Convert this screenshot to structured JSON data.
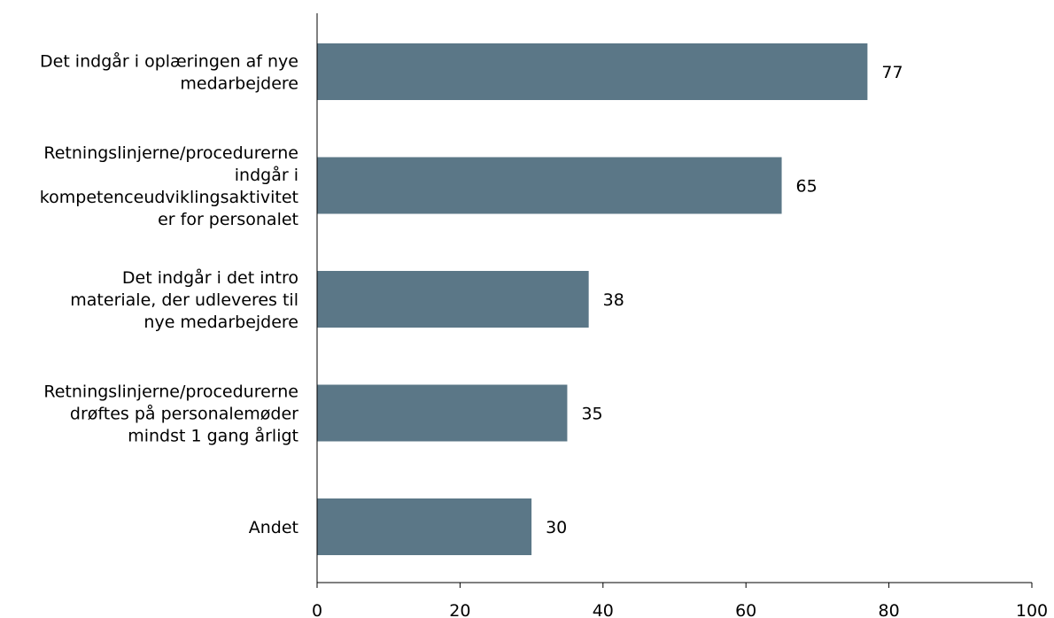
{
  "chart_data": {
    "type": "bar",
    "orientation": "horizontal",
    "title": "",
    "xlabel": "",
    "ylabel": "",
    "categories": [
      [
        "Det indgår i oplæringen af nye",
        "medarbejdere"
      ],
      [
        "Retningslinjerne/procedurerne",
        "indgår i",
        "kompetenceudviklingsaktivitet",
        "er for personalet"
      ],
      [
        "Det indgår i det intro",
        "materiale, der udleveres til",
        "nye medarbejdere"
      ],
      [
        "Retningslinjerne/procedurerne",
        "drøftes på personalemøder",
        "mindst 1 gang årligt"
      ],
      [
        "Andet"
      ]
    ],
    "values": [
      77,
      65,
      38,
      35,
      30
    ],
    "xlim": [
      0,
      100
    ],
    "xticks": [
      0,
      20,
      40,
      60,
      80,
      100
    ],
    "grid": false,
    "data_labels": true,
    "bar_color": "#5b7787"
  }
}
